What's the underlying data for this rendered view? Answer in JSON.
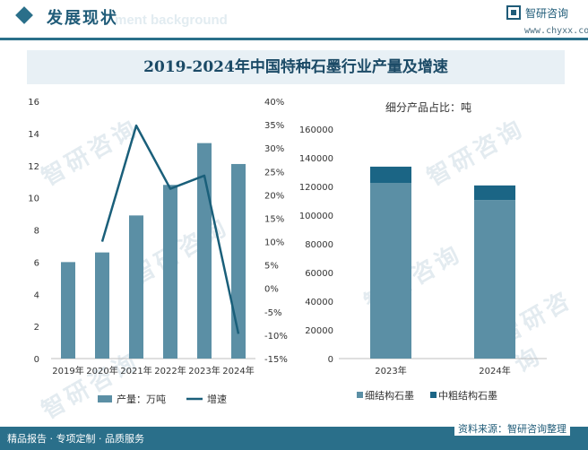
{
  "header": {
    "title": "发展现状",
    "subtitle_en": "ment background",
    "logo_text": "智研咨询",
    "logo_url": "www.chyxx.com"
  },
  "chart_title": "2019-2024年中国特种石墨行业产量及增速",
  "footer": {
    "left": "精品报告 · 专项定制 · 品质服务",
    "right": "资料来源：智研咨询整理"
  },
  "watermark": "智研咨询",
  "colors": {
    "bar": "#5b8fa5",
    "line": "#1a5f7a",
    "accent": "#2a6f8a",
    "dark_segment": "#1b6585"
  },
  "chart_data": [
    {
      "type": "bar",
      "categories": [
        "2019年",
        "2020年",
        "2021年",
        "2022年",
        "2023年",
        "2024年"
      ],
      "series": [
        {
          "name": "产量：万吨",
          "type": "bar",
          "axis": "left",
          "values": [
            6.0,
            6.6,
            8.9,
            10.8,
            13.4,
            12.1
          ]
        },
        {
          "name": "增速",
          "type": "line",
          "axis": "right",
          "values": [
            null,
            10.0,
            34.8,
            21.3,
            24.1,
            -9.7
          ]
        }
      ],
      "y_left": {
        "min": 0,
        "max": 16,
        "ticks": [
          "0",
          "2",
          "4",
          "6",
          "8",
          "10",
          "12",
          "14",
          "16"
        ]
      },
      "y_right": {
        "min": -15,
        "max": 40,
        "ticks": [
          "-15%",
          "-10%",
          "-5%",
          "0%",
          "5%",
          "10%",
          "15%",
          "20%",
          "25%",
          "30%",
          "35%",
          "40%"
        ]
      },
      "legend": [
        "产量：万吨",
        "增速"
      ]
    },
    {
      "type": "bar",
      "stacked": true,
      "title": "细分产品占比：吨",
      "categories": [
        "2023年",
        "2024年"
      ],
      "series": [
        {
          "name": "细结构石墨",
          "values": [
            122500,
            110500
          ]
        },
        {
          "name": "中粗结构石墨",
          "values": [
            11300,
            10200
          ]
        }
      ],
      "y": {
        "min": 0,
        "max": 160000,
        "ticks": [
          "0",
          "20000",
          "40000",
          "60000",
          "80000",
          "100000",
          "120000",
          "140000",
          "160000"
        ]
      },
      "legend": [
        "细结构石墨",
        "中粗结构石墨"
      ]
    }
  ]
}
